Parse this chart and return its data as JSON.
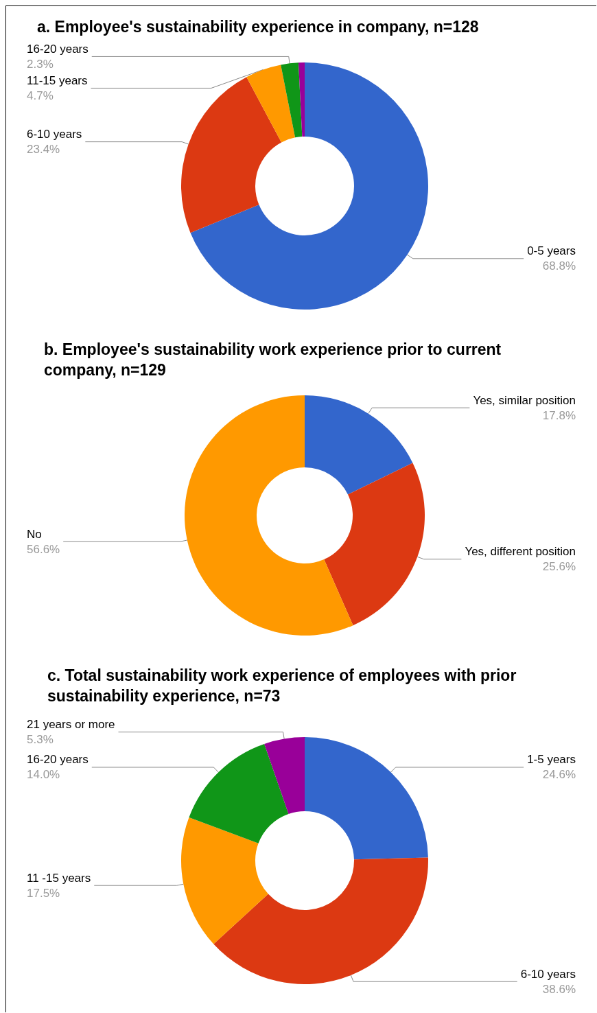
{
  "chart_data": [
    {
      "type": "donut",
      "title": "a. Employee's sustainability experience in company, n=128",
      "categories": [
        "0-5 years",
        "6-10 years",
        "11-15 years",
        "16-20 years",
        null
      ],
      "values": [
        68.8,
        23.4,
        4.7,
        2.3,
        0.8
      ],
      "value_labels": [
        "68.8%",
        "23.4%",
        "4.7%",
        "2.3%",
        null
      ],
      "colors": [
        "#3366cc",
        "#dc3912",
        "#ff9900",
        "#109618",
        "#990099"
      ]
    },
    {
      "type": "donut",
      "title": "b. Employee's sustainability work experience prior to current company, n=129",
      "categories": [
        "Yes, similar position",
        "Yes, different position",
        "No"
      ],
      "values": [
        17.8,
        25.6,
        56.6
      ],
      "value_labels": [
        "17.8%",
        "25.6%",
        "56.6%"
      ],
      "colors": [
        "#3366cc",
        "#dc3912",
        "#ff9900"
      ]
    },
    {
      "type": "donut",
      "title": "c. Total sustainability work experience of employees with prior sustainability experience, n=73",
      "categories": [
        "1-5 years",
        "6-10 years",
        "11 -15 years",
        "16-20 years",
        "21 years or more"
      ],
      "values": [
        24.6,
        38.6,
        17.5,
        14.0,
        5.3
      ],
      "value_labels": [
        "24.6%",
        "38.6%",
        "17.5%",
        "14.0%",
        "5.3%"
      ],
      "colors": [
        "#3366cc",
        "#dc3912",
        "#ff9900",
        "#109618",
        "#990099"
      ]
    }
  ]
}
